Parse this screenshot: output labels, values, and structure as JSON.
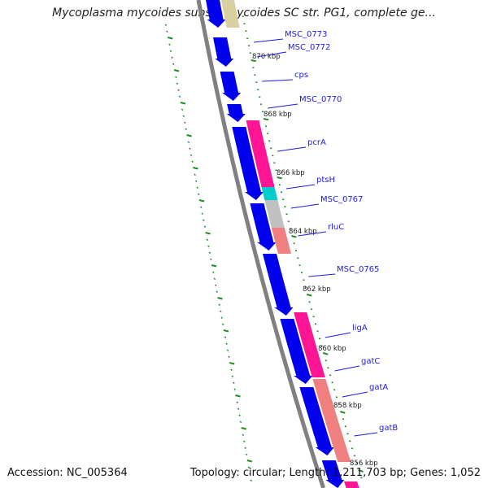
{
  "title": "Mycoplasma mycoides subsp. mycoides SC str. PG1, complete ge...",
  "footer": {
    "accession": "Accession: NC_005364",
    "summary": "Topology: circular; Length: 1,211,703 bp; Genes: 1,052"
  },
  "colors": {
    "backbone": "#808080",
    "forward_cds": "#0000ee",
    "highlight_pink": "#ff1493",
    "highlight_salmon": "#f08080",
    "highlight_cyan": "#00cccc",
    "highlight_gray": "#c0c0c0",
    "highlight_tan": "#d8d0a0",
    "gene_label": "#1a1aee",
    "tick": "#228b22"
  },
  "gene_labels": [
    "MSC_0773",
    "MSC_0772",
    "cps",
    "MSC_0770",
    "pcrA",
    "ptsH",
    "MSC_0767",
    "rluC",
    "MSC_0765",
    "ligA",
    "gatC",
    "gatA",
    "gatB"
  ],
  "position_labels": [
    "870 kbp",
    "868 kbp",
    "866 kbp",
    "864 kbp",
    "862 kbp",
    "860 kbp",
    "858 kbp",
    "856 kbp"
  ]
}
